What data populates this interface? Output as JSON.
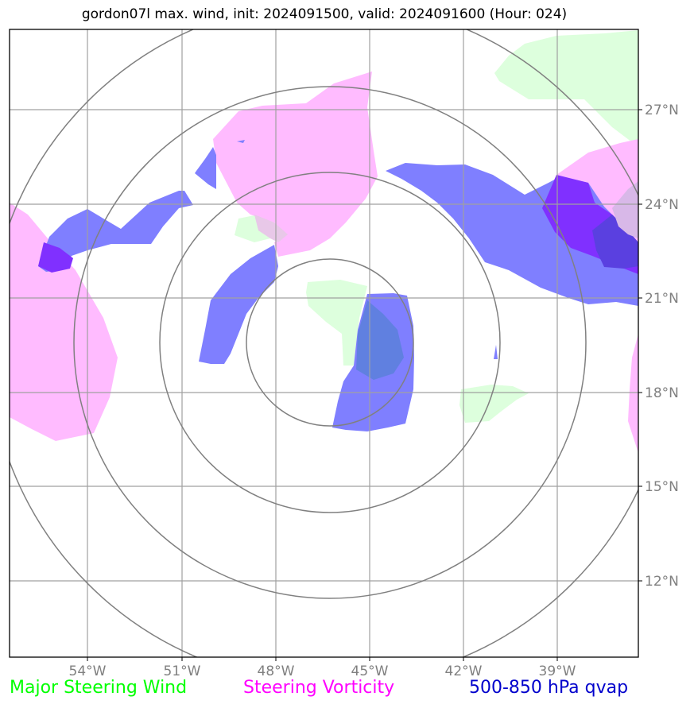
{
  "title": "gordon07l max. wind, init: 2024091500, valid: 2024091600 (Hour: 024)",
  "lon_labels": [
    "54°W",
    "51°W",
    "48°W",
    "45°W",
    "42°W",
    "39°W"
  ],
  "lat_labels": [
    "27°N",
    "24°N",
    "21°N",
    "18°N",
    "15°N",
    "12°N"
  ],
  "legend": {
    "wind": "Major Steering Wind",
    "vorticity": "Steering Vorticity",
    "qvap": "500-850 hPa qvap"
  },
  "colors": {
    "wind": "#00ff00",
    "vorticity": "#ff00ff",
    "qvap": "#0000cc",
    "wind_fill": "#ddffdd",
    "vorticity_fill": "#ffbbff",
    "qvap_fill": "#7f7fff",
    "gridline": "#a0a0a0",
    "range_ring": "#808080",
    "tick_label": "#808080"
  }
}
